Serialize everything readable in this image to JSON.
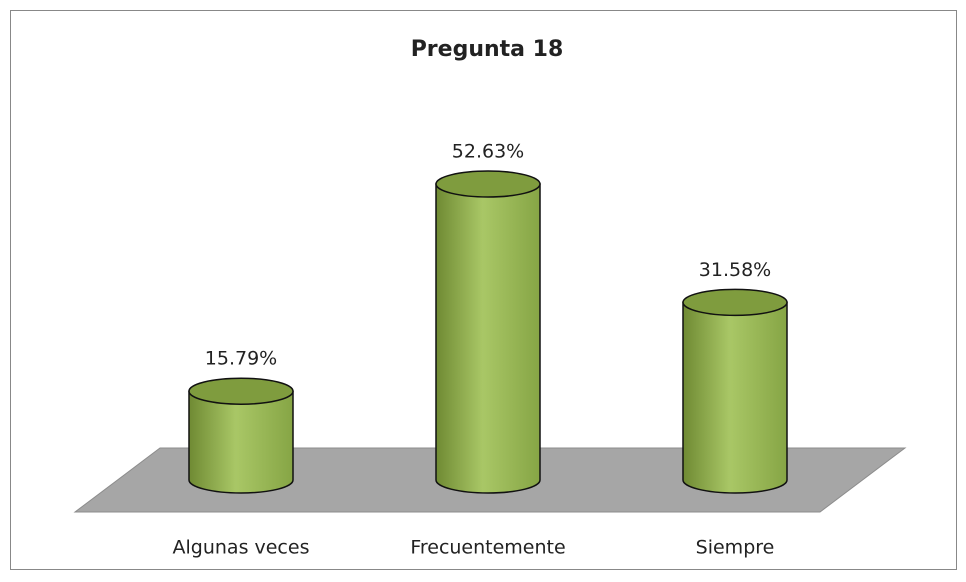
{
  "chart_data": {
    "type": "bar",
    "title": "Pregunta 18",
    "categories": [
      "Algunas veces",
      "Frecuentemente",
      "Siempre"
    ],
    "values": [
      15.79,
      52.63,
      31.58
    ],
    "value_labels": [
      "15.79%",
      "52.63%",
      "31.58%"
    ],
    "color": "#9bbb59"
  }
}
